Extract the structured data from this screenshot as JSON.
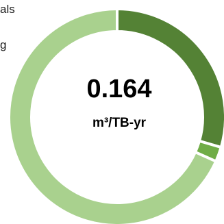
{
  "chart_data": {
    "type": "pie",
    "donut": true,
    "slices": [
      {
        "value": 0.295,
        "color": "#548235"
      },
      {
        "value": 0.022,
        "color": "#70ad47"
      },
      {
        "value": 0.683,
        "color": "#a9d18e"
      }
    ],
    "center_value": "0.164",
    "center_unit": "m³/TB-yr",
    "legend_fragments": [
      "als",
      "g"
    ]
  },
  "colors": {
    "dark_green": "#548235",
    "mid_green": "#70ad47",
    "light_green": "#a9d18e"
  }
}
